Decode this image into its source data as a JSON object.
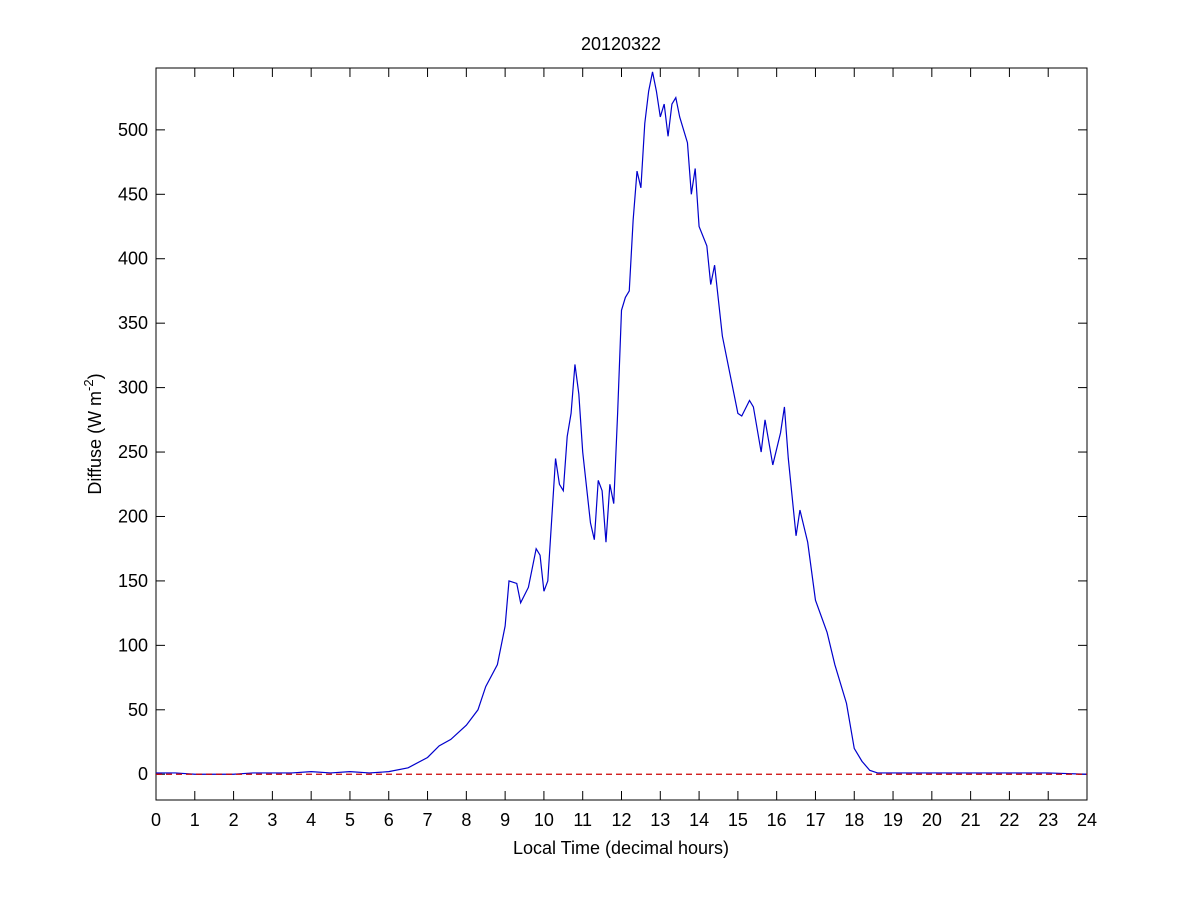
{
  "chart_data": {
    "type": "line",
    "title": "20120322",
    "xlabel": "Local Time (decimal hours)",
    "ylabel": {
      "text": "Diffuse (W m",
      "superscript": "-2",
      "suffix": ")"
    },
    "xlim": [
      0,
      24
    ],
    "ylim": [
      -20,
      548
    ],
    "xticks": [
      0,
      1,
      2,
      3,
      4,
      5,
      6,
      7,
      8,
      9,
      10,
      11,
      12,
      13,
      14,
      15,
      16,
      17,
      18,
      19,
      20,
      21,
      22,
      23,
      24
    ],
    "yticks": [
      0,
      50,
      100,
      150,
      200,
      250,
      300,
      350,
      400,
      450,
      500
    ],
    "series": [
      {
        "color": "#0000cc",
        "style": "solid",
        "x": [
          0,
          0.5,
          1,
          1.5,
          2,
          2.5,
          3,
          3.5,
          4,
          4.5,
          5,
          5.5,
          6,
          6.5,
          7,
          7.3,
          7.6,
          8,
          8.3,
          8.5,
          8.8,
          9,
          9.1,
          9.3,
          9.4,
          9.6,
          9.8,
          9.9,
          10,
          10.1,
          10.3,
          10.4,
          10.5,
          10.6,
          10.7,
          10.8,
          10.9,
          11,
          11.2,
          11.3,
          11.4,
          11.5,
          11.6,
          11.7,
          11.8,
          11.9,
          12,
          12.1,
          12.2,
          12.3,
          12.4,
          12.5,
          12.6,
          12.7,
          12.8,
          12.9,
          13,
          13.1,
          13.2,
          13.3,
          13.4,
          13.5,
          13.7,
          13.8,
          13.9,
          14,
          14.2,
          14.3,
          14.4,
          14.6,
          14.8,
          15,
          15.1,
          15.3,
          15.4,
          15.6,
          15.7,
          15.9,
          16.1,
          16.2,
          16.3,
          16.5,
          16.6,
          16.8,
          17,
          17.3,
          17.5,
          17.8,
          18,
          18.2,
          18.4,
          18.6,
          19,
          20,
          21,
          22,
          23,
          24
        ],
        "values": [
          1,
          1,
          0,
          0,
          0,
          1,
          1,
          1,
          2,
          1,
          2,
          1,
          2,
          5,
          13,
          22,
          27,
          38,
          50,
          68,
          85,
          115,
          150,
          148,
          133,
          145,
          175,
          170,
          142,
          150,
          245,
          225,
          220,
          262,
          280,
          318,
          295,
          250,
          195,
          182,
          228,
          220,
          180,
          225,
          210,
          280,
          360,
          370,
          375,
          430,
          468,
          455,
          505,
          530,
          545,
          530,
          510,
          520,
          495,
          520,
          525,
          510,
          490,
          450,
          470,
          425,
          410,
          380,
          395,
          340,
          310,
          280,
          278,
          290,
          285,
          250,
          275,
          240,
          265,
          285,
          245,
          185,
          205,
          180,
          135,
          110,
          85,
          55,
          20,
          10,
          3,
          1,
          1,
          1,
          1,
          1,
          1,
          0
        ]
      },
      {
        "color": "#cc0000",
        "style": "dashed",
        "x": [
          0,
          24
        ],
        "values": [
          0,
          0
        ]
      }
    ]
  }
}
